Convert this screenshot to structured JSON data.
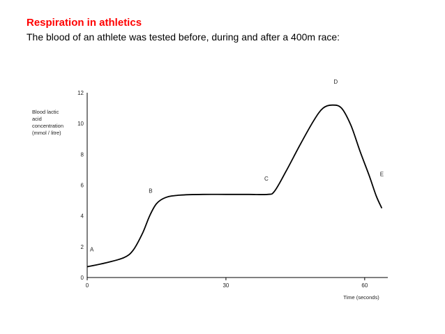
{
  "heading": {
    "title": "Respiration in athletics",
    "subtitle": "The blood of an athlete was tested before, during and after a 400m race:"
  },
  "chart_data": {
    "type": "line",
    "ylabel_lines": [
      "Blood lactic",
      "acid",
      "concentration",
      "(mmol / litre)"
    ],
    "xlabel": "Time (seconds)",
    "xlim": [
      0,
      65
    ],
    "ylim": [
      0,
      12
    ],
    "x_ticks": [
      0,
      30,
      60
    ],
    "y_ticks": [
      0,
      2,
      4,
      6,
      8,
      10,
      12
    ],
    "grid": false,
    "series": [
      {
        "x": [
          0,
          4,
          8,
          10,
          12,
          13.5,
          15,
          17,
          20,
          25,
          30,
          35,
          39,
          40.5,
          43,
          46,
          49,
          51,
          53,
          55,
          57,
          59,
          61,
          62.5,
          63.7
        ],
        "values": [
          0.7,
          0.95,
          1.3,
          1.8,
          2.9,
          4.0,
          4.8,
          5.2,
          5.35,
          5.4,
          5.4,
          5.4,
          5.4,
          5.6,
          6.9,
          8.6,
          10.2,
          11.0,
          11.2,
          11.0,
          9.9,
          8.2,
          6.6,
          5.3,
          4.5
        ]
      }
    ],
    "annotations": [
      {
        "text": "A",
        "x": 0.3,
        "y": 1.7
      },
      {
        "text": "B",
        "x": 13,
        "y": 5.5
      },
      {
        "text": "C",
        "x": 38,
        "y": 6.3
      },
      {
        "text": "D",
        "x": 53,
        "y": 12.6
      },
      {
        "text": "E",
        "x": 63,
        "y": 6.6
      }
    ]
  }
}
